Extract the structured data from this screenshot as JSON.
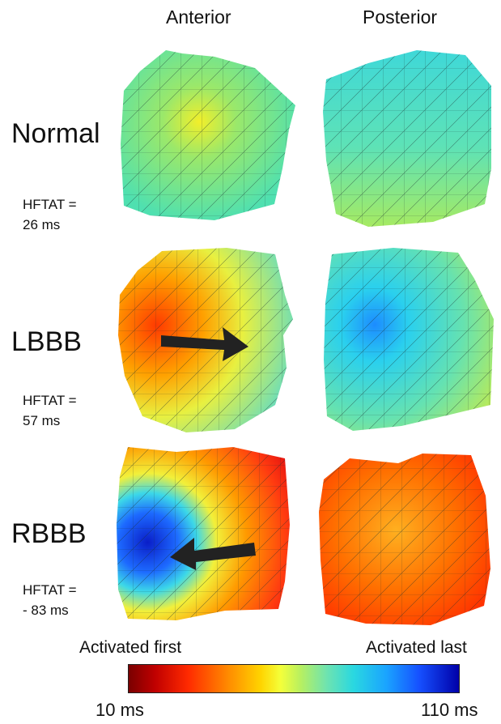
{
  "columns": {
    "anterior": "Anterior",
    "posterior": "Posterior"
  },
  "rows": [
    {
      "label": "Normal",
      "hftat_line1": "HFTAT =",
      "hftat_line2": "26 ms"
    },
    {
      "label": "LBBB",
      "hftat_line1": "HFTAT =",
      "hftat_line2": "57 ms"
    },
    {
      "label": "RBBB",
      "hftat_line1": "HFTAT =",
      "hftat_line2": "- 83 ms"
    }
  ],
  "legend": {
    "first": "Activated first",
    "last": "Activated last",
    "min": "10 ms",
    "max": "110 ms"
  },
  "colors": {
    "early": "#7a0000",
    "mid": "#f4ff3a",
    "late": "#0000a8",
    "arrow": "#222222"
  }
}
